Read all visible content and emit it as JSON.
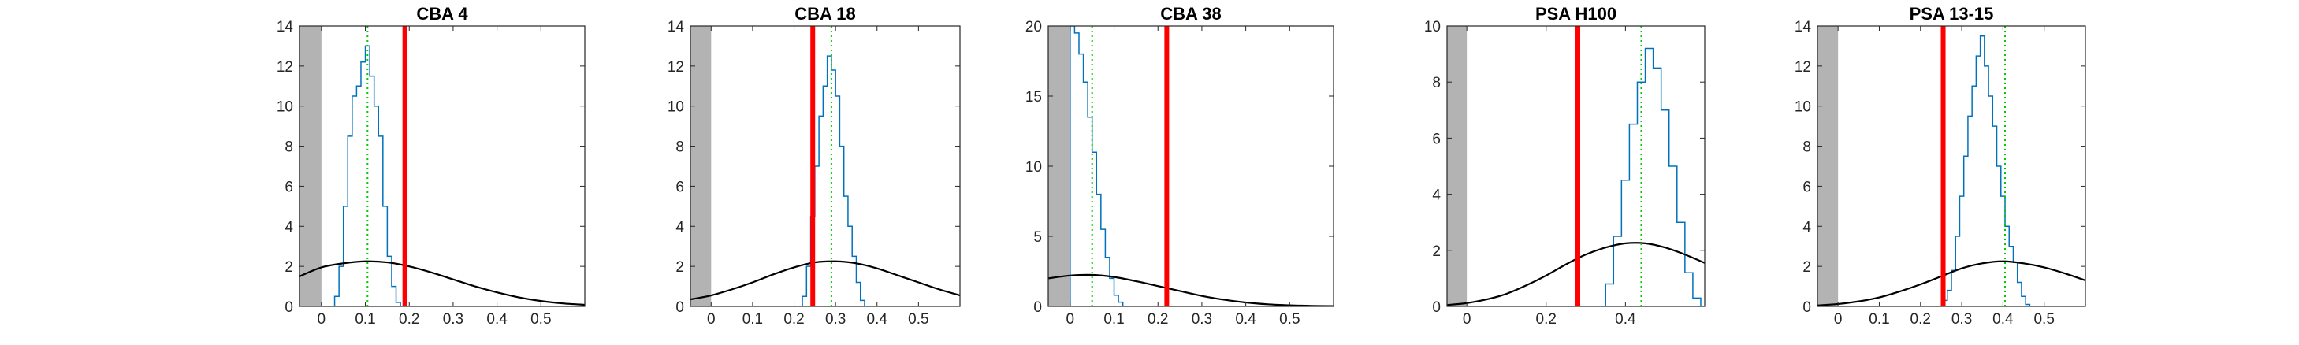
{
  "figure": {
    "description_colors": {
      "histogram": "#0072BD",
      "prior_curve": "#000000",
      "true_value_line": "#FF0000",
      "estimate_line": "#00CC00",
      "excluded_region": "#B3B3B3"
    }
  },
  "chart_data": [
    {
      "type": "histogram",
      "title": "CBA 4",
      "xlim": [
        -0.05,
        0.6
      ],
      "ylim": [
        0,
        14
      ],
      "xticks": [
        0,
        0.1,
        0.2,
        0.3,
        0.4,
        0.5
      ],
      "xticklabels": [
        "0",
        "0.1",
        "0.2",
        "0.3",
        "0.4",
        "0.5"
      ],
      "yticks": [
        0,
        2,
        4,
        6,
        8,
        10,
        12,
        14
      ],
      "yticklabels": [
        "0",
        "2",
        "4",
        "6",
        "8",
        "10",
        "12",
        "14"
      ],
      "shaded_x_range": [
        -0.05,
        0.0
      ],
      "histogram": {
        "x": [
          0.035,
          0.045,
          0.055,
          0.065,
          0.075,
          0.085,
          0.095,
          0.105,
          0.115,
          0.125,
          0.135,
          0.145,
          0.155,
          0.165,
          0.175
        ],
        "density": [
          0.5,
          2.0,
          5.0,
          8.5,
          10.5,
          11.0,
          12.2,
          13.0,
          11.5,
          10.0,
          8.5,
          5.0,
          2.5,
          1.0,
          0.2
        ]
      },
      "prior_curve": {
        "x": [
          -0.05,
          0.0,
          0.05,
          0.1,
          0.15,
          0.2,
          0.25,
          0.3,
          0.35,
          0.4,
          0.45,
          0.5,
          0.55,
          0.6
        ],
        "y": [
          1.5,
          1.95,
          2.15,
          2.25,
          2.2,
          2.0,
          1.7,
          1.35,
          1.0,
          0.7,
          0.45,
          0.27,
          0.15,
          0.08
        ]
      },
      "true_value": 0.19,
      "estimate": 0.105
    },
    {
      "type": "histogram",
      "title": "CBA 18",
      "xlim": [
        -0.05,
        0.6
      ],
      "ylim": [
        0,
        14
      ],
      "xticks": [
        0,
        0.1,
        0.2,
        0.3,
        0.4,
        0.5
      ],
      "xticklabels": [
        "0",
        "0.1",
        "0.2",
        "0.3",
        "0.4",
        "0.5"
      ],
      "yticks": [
        0,
        2,
        4,
        6,
        8,
        10,
        12,
        14
      ],
      "yticklabels": [
        "0",
        "2",
        "4",
        "6",
        "8",
        "10",
        "12",
        "14"
      ],
      "shaded_x_range": [
        -0.05,
        0.0
      ],
      "histogram": {
        "x": [
          0.225,
          0.235,
          0.245,
          0.255,
          0.265,
          0.275,
          0.285,
          0.295,
          0.305,
          0.315,
          0.325,
          0.335,
          0.345,
          0.355,
          0.365
        ],
        "density": [
          0.5,
          2.0,
          4.5,
          7.0,
          9.5,
          11.0,
          12.5,
          11.8,
          10.5,
          8.0,
          5.5,
          4.0,
          2.5,
          1.2,
          0.3
        ]
      },
      "prior_curve": {
        "x": [
          -0.05,
          0.0,
          0.05,
          0.1,
          0.15,
          0.2,
          0.25,
          0.3,
          0.35,
          0.4,
          0.45,
          0.5,
          0.55,
          0.6
        ],
        "y": [
          0.35,
          0.55,
          0.85,
          1.2,
          1.6,
          1.95,
          2.2,
          2.25,
          2.15,
          1.9,
          1.55,
          1.2,
          0.85,
          0.55
        ]
      },
      "true_value": 0.245,
      "estimate": 0.29
    },
    {
      "type": "histogram",
      "title": "CBA 38",
      "xlim": [
        -0.05,
        0.6
      ],
      "ylim": [
        0,
        20
      ],
      "xticks": [
        0,
        0.1,
        0.2,
        0.3,
        0.4,
        0.5
      ],
      "xticklabels": [
        "0",
        "0.1",
        "0.2",
        "0.3",
        "0.4",
        "0.5"
      ],
      "yticks": [
        0,
        5,
        10,
        15,
        20
      ],
      "yticklabels": [
        "0",
        "5",
        "10",
        "15",
        "20"
      ],
      "shaded_x_range": [
        -0.05,
        0.0
      ],
      "histogram": {
        "x": [
          0.005,
          0.015,
          0.025,
          0.035,
          0.045,
          0.055,
          0.065,
          0.075,
          0.085,
          0.095,
          0.105,
          0.115
        ],
        "density": [
          20.0,
          19.5,
          18.0,
          16.0,
          13.5,
          11.0,
          8.0,
          5.5,
          3.5,
          2.0,
          0.8,
          0.3
        ]
      },
      "prior_curve": {
        "x": [
          -0.05,
          0.0,
          0.05,
          0.1,
          0.15,
          0.2,
          0.25,
          0.3,
          0.35,
          0.4,
          0.45,
          0.5,
          0.55,
          0.6
        ],
        "y": [
          2.0,
          2.2,
          2.25,
          2.1,
          1.8,
          1.45,
          1.1,
          0.75,
          0.48,
          0.28,
          0.15,
          0.08,
          0.04,
          0.02
        ]
      },
      "true_value": 0.22,
      "estimate": 0.05
    },
    {
      "type": "histogram",
      "title": "PSA H100",
      "xlim": [
        -0.05,
        0.6
      ],
      "ylim": [
        0,
        10
      ],
      "xticks": [
        0,
        0.2,
        0.4
      ],
      "xticklabels": [
        "0",
        "0.2",
        "0.4"
      ],
      "yticks": [
        0,
        2,
        4,
        6,
        8,
        10
      ],
      "yticklabels": [
        "0",
        "2",
        "4",
        "6",
        "8",
        "10"
      ],
      "shaded_x_range": [
        -0.05,
        0.0
      ],
      "histogram": {
        "x": [
          0.36,
          0.38,
          0.4,
          0.42,
          0.44,
          0.46,
          0.48,
          0.5,
          0.52,
          0.54,
          0.56,
          0.58
        ],
        "density": [
          0.8,
          2.5,
          4.5,
          6.5,
          8.0,
          9.2,
          8.5,
          7.0,
          5.0,
          3.0,
          1.2,
          0.3
        ]
      },
      "prior_curve": {
        "x": [
          -0.05,
          0.0,
          0.05,
          0.1,
          0.15,
          0.2,
          0.25,
          0.3,
          0.35,
          0.4,
          0.45,
          0.5,
          0.55,
          0.6
        ],
        "y": [
          0.05,
          0.12,
          0.25,
          0.45,
          0.75,
          1.1,
          1.5,
          1.85,
          2.1,
          2.25,
          2.25,
          2.1,
          1.85,
          1.55
        ]
      },
      "true_value": 0.28,
      "estimate": 0.44
    },
    {
      "type": "histogram",
      "title": "PSA 13-15",
      "xlim": [
        -0.05,
        0.6
      ],
      "ylim": [
        0,
        14
      ],
      "xticks": [
        0,
        0.1,
        0.2,
        0.3,
        0.4,
        0.5
      ],
      "xticklabels": [
        "0",
        "0.1",
        "0.2",
        "0.3",
        "0.4",
        "0.5"
      ],
      "yticks": [
        0,
        2,
        4,
        6,
        8,
        10,
        12,
        14
      ],
      "yticklabels": [
        "0",
        "2",
        "4",
        "6",
        "8",
        "10",
        "12",
        "14"
      ],
      "shaded_x_range": [
        -0.05,
        0.0
      ],
      "histogram": {
        "x": [
          0.26,
          0.27,
          0.28,
          0.29,
          0.3,
          0.31,
          0.32,
          0.33,
          0.34,
          0.35,
          0.36,
          0.37,
          0.38,
          0.39,
          0.4,
          0.41,
          0.42,
          0.43,
          0.44,
          0.45,
          0.46
        ],
        "density": [
          0.3,
          0.8,
          1.8,
          3.5,
          5.5,
          7.5,
          9.5,
          11.0,
          12.5,
          13.5,
          12.0,
          10.5,
          9.0,
          7.0,
          5.5,
          4.0,
          3.0,
          2.2,
          1.2,
          0.5,
          0.1
        ]
      },
      "prior_curve": {
        "x": [
          -0.05,
          0.0,
          0.05,
          0.1,
          0.15,
          0.2,
          0.25,
          0.3,
          0.35,
          0.4,
          0.45,
          0.5,
          0.55,
          0.6
        ],
        "y": [
          0.05,
          0.12,
          0.25,
          0.45,
          0.75,
          1.1,
          1.5,
          1.9,
          2.15,
          2.25,
          2.15,
          1.95,
          1.65,
          1.3
        ]
      },
      "true_value": 0.255,
      "estimate": 0.405
    }
  ]
}
